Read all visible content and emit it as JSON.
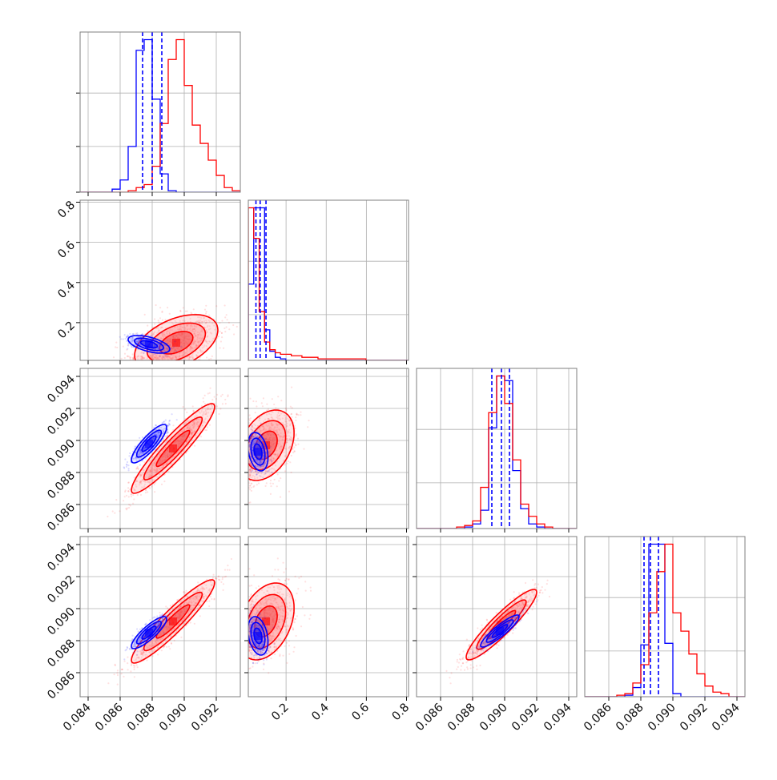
{
  "chart_data": {
    "type": "corner",
    "parameters": [
      "",
      "",
      "",
      ""
    ],
    "series": [
      {
        "name": "",
        "color": "#0000ff"
      },
      {
        "name": "",
        "color": "#ff0000"
      }
    ],
    "axes": [
      {
        "range": [
          0.0835,
          0.0935
        ],
        "ticks": [
          "0.084",
          "0.086",
          "0.088",
          "0.090",
          "0.092"
        ],
        "tick_values": [
          0.084,
          0.086,
          0.088,
          0.09,
          0.092
        ]
      },
      {
        "range": [
          0.012,
          0.81
        ],
        "ticks": [
          "0.2",
          "0.4",
          "0.6",
          "0.8"
        ],
        "tick_values": [
          0.2,
          0.4,
          0.6,
          0.8
        ]
      },
      {
        "range": [
          0.0845,
          0.0945
        ],
        "ticks": [
          "0.086",
          "0.088",
          "0.090",
          "0.092",
          "0.094"
        ],
        "tick_values": [
          0.086,
          0.088,
          0.09,
          0.092,
          0.094
        ]
      },
      {
        "range": [
          0.0845,
          0.0945
        ],
        "ticks": [
          "0.086",
          "0.088",
          "0.090",
          "0.092",
          "0.094"
        ],
        "tick_values": [
          0.086,
          0.088,
          0.09,
          0.092,
          0.094
        ]
      }
    ],
    "left_tick_labels": {
      "row1": [
        "0.2",
        "0.4",
        "0.6",
        "0.8"
      ],
      "row2": [
        "0.086",
        "0.088",
        "0.090",
        "0.092",
        "0.094"
      ],
      "row3": [
        "0.086",
        "0.088",
        "0.090",
        "0.092",
        "0.094"
      ]
    },
    "histograms": [
      {
        "param": 0,
        "edges": [
          0.0835,
          0.084,
          0.0845,
          0.085,
          0.0855,
          0.086,
          0.0865,
          0.087,
          0.0875,
          0.088,
          0.0885,
          0.089,
          0.0895,
          0.09,
          0.0905,
          0.091,
          0.0915,
          0.092,
          0.0925,
          0.093,
          0.0935
        ],
        "blue": [
          0,
          0,
          0,
          0,
          2,
          8,
          30,
          93,
          100,
          61,
          12,
          1,
          0,
          0,
          0,
          0,
          0,
          0,
          0,
          0
        ],
        "red": [
          0,
          0,
          0,
          0,
          0,
          0,
          1,
          3,
          5,
          17,
          45,
          87,
          100,
          70,
          44,
          32,
          21,
          11,
          3,
          1
        ],
        "blue_quantiles": [
          0.0874,
          0.088,
          0.0886
        ]
      },
      {
        "param": 1,
        "edges": [
          0.012,
          0.039,
          0.066,
          0.093,
          0.119,
          0.146,
          0.172,
          0.199,
          0.226,
          0.252,
          0.279,
          0.306,
          0.332,
          0.359,
          0.385,
          0.412,
          0.439,
          0.465,
          0.492,
          0.518,
          0.545,
          0.572,
          0.598,
          0.625,
          0.651,
          0.678,
          0.705,
          0.731,
          0.758,
          0.784,
          0.81
        ],
        "blue": [
          50,
          100,
          100,
          20,
          6,
          2,
          1,
          0,
          0,
          0,
          0,
          0,
          0,
          0,
          0,
          0,
          0,
          0,
          0,
          0,
          0,
          0,
          0,
          0,
          0,
          0,
          0,
          0,
          0,
          0
        ],
        "red": [
          100,
          80,
          32,
          12,
          7,
          5,
          4,
          4,
          3,
          3,
          2,
          2,
          2,
          1,
          1,
          1,
          1,
          1,
          1,
          1,
          1,
          1,
          0,
          0,
          0,
          0,
          0,
          0,
          0,
          0
        ],
        "blue_quantiles": [
          0.05,
          0.071,
          0.1
        ]
      },
      {
        "param": 2,
        "edges": [
          0.0845,
          0.085,
          0.0855,
          0.086,
          0.0865,
          0.087,
          0.0875,
          0.088,
          0.0885,
          0.089,
          0.0895,
          0.09,
          0.0905,
          0.091,
          0.0915,
          0.092,
          0.0925,
          0.093,
          0.0935,
          0.094,
          0.0945
        ],
        "blue": [
          0,
          0,
          0,
          0,
          0,
          0,
          1,
          3,
          12,
          66,
          100,
          97,
          38,
          13,
          3,
          1,
          0,
          0,
          0,
          0
        ],
        "red": [
          0,
          0,
          0,
          0,
          0,
          1,
          2,
          5,
          27,
          76,
          100,
          82,
          45,
          16,
          8,
          3,
          1,
          0,
          0,
          0
        ],
        "blue_quantiles": [
          0.0892,
          0.0898,
          0.0903
        ]
      },
      {
        "param": 3,
        "edges": [
          0.0845,
          0.085,
          0.0855,
          0.086,
          0.0865,
          0.087,
          0.0875,
          0.088,
          0.0885,
          0.089,
          0.0895,
          0.09,
          0.0905,
          0.091,
          0.0915,
          0.092,
          0.0925,
          0.093,
          0.0935,
          0.094,
          0.0945
        ],
        "blue": [
          0,
          0,
          0,
          0,
          0,
          1,
          6,
          34,
          100,
          100,
          35,
          2,
          0,
          0,
          0,
          0,
          0,
          0,
          0,
          0
        ],
        "red": [
          0,
          0,
          0,
          0,
          1,
          2,
          9,
          21,
          55,
          82,
          100,
          55,
          43,
          28,
          15,
          7,
          3,
          2,
          0,
          0
        ],
        "blue_quantiles": [
          0.0882,
          0.0886,
          0.0891
        ]
      }
    ],
    "pairs": [
      {
        "x": 0,
        "y": 1,
        "blue": {
          "mean": [
            0.0878,
            0.092
          ],
          "sd": [
            0.00065,
            0.022
          ],
          "rho": -0.55
        },
        "red": {
          "mean": [
            0.0895,
            0.1
          ],
          "sd": [
            0.0013,
            0.07
          ],
          "rho": 0.45
        }
      },
      {
        "x": 0,
        "y": 2,
        "blue": {
          "mean": [
            0.0878,
            0.0898
          ],
          "sd": [
            0.00055,
            0.0006
          ],
          "rho": 0.85
        },
        "red": {
          "mean": [
            0.0893,
            0.0895
          ],
          "sd": [
            0.0013,
            0.0014
          ],
          "rho": 0.93
        }
      },
      {
        "x": 1,
        "y": 2,
        "blue": {
          "mean": [
            0.06,
            0.0893
          ],
          "sd": [
            0.025,
            0.0006
          ],
          "rho": -0.3
        },
        "red": {
          "mean": [
            0.1,
            0.0897
          ],
          "sd": [
            0.07,
            0.0011
          ],
          "rho": 0.35
        }
      },
      {
        "x": 0,
        "y": 3,
        "blue": {
          "mean": [
            0.0878,
            0.0885
          ],
          "sd": [
            0.00055,
            0.0005
          ],
          "rho": 0.85
        },
        "red": {
          "mean": [
            0.0893,
            0.0892
          ],
          "sd": [
            0.0013,
            0.0013
          ],
          "rho": 0.93
        }
      },
      {
        "x": 1,
        "y": 3,
        "blue": {
          "mean": [
            0.06,
            0.0883
          ],
          "sd": [
            0.025,
            0.0006
          ],
          "rho": -0.3
        },
        "red": {
          "mean": [
            0.1,
            0.0892
          ],
          "sd": [
            0.07,
            0.0012
          ],
          "rho": 0.35
        }
      },
      {
        "x": 2,
        "y": 3,
        "blue": {
          "mean": [
            0.0897,
            0.0886
          ],
          "sd": [
            0.0006,
            0.0005
          ],
          "rho": 0.9
        },
        "red": {
          "mean": [
            0.0898,
            0.089
          ],
          "sd": [
            0.0011,
            0.0011
          ],
          "rho": 0.92
        }
      }
    ],
    "grid": true,
    "legend": "none"
  }
}
